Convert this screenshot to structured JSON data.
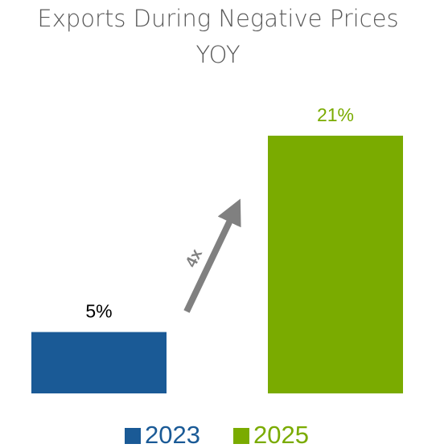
{
  "chart_data": {
    "type": "bar",
    "title": [
      "Exports During Negative Prices",
      "YOY"
    ],
    "categories": [
      null
    ],
    "series": [
      {
        "name": "2023",
        "color": "#1a5a96",
        "values": [
          5
        ],
        "value_labels": [
          "5%"
        ],
        "label_color": "#000000"
      },
      {
        "name": "2025",
        "color": "#7aab00",
        "values": [
          21
        ],
        "value_labels": [
          "21%"
        ],
        "label_color": "#7aab00"
      }
    ],
    "annotation": "4x",
    "legend": "bottom"
  }
}
